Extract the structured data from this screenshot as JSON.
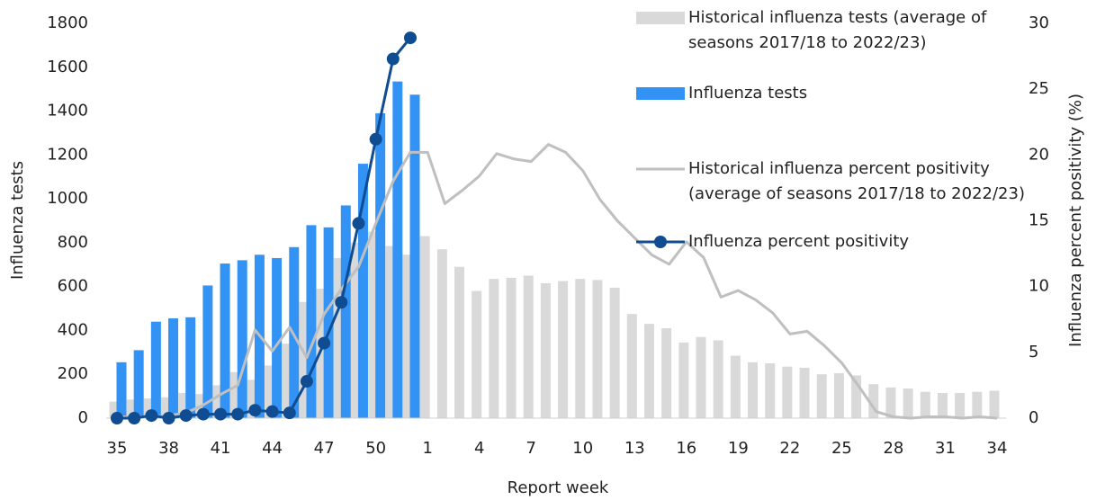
{
  "chart_data": {
    "type": "bar",
    "x_label": "Report week",
    "y_label": "Influenza tests",
    "y2_label": "Influenza percent positivity (%)",
    "categories": [
      "35",
      null,
      null,
      "38",
      null,
      null,
      "41",
      null,
      null,
      "44",
      null,
      null,
      "47",
      null,
      null,
      "50",
      null,
      null,
      "1",
      null,
      null,
      "4",
      null,
      null,
      "7",
      null,
      null,
      "10",
      null,
      null,
      "13",
      null,
      null,
      "16",
      null,
      null,
      "19",
      null,
      null,
      "22",
      null,
      null,
      "25",
      null,
      null,
      "28",
      null,
      null,
      "31",
      null,
      null,
      "34"
    ],
    "ylim": [
      0,
      1800
    ],
    "yticks": [
      0,
      200,
      400,
      600,
      800,
      1000,
      1200,
      1400,
      1600,
      1800
    ],
    "y2lim": [
      0,
      30
    ],
    "y2ticks": [
      0,
      5,
      10,
      15,
      20,
      25,
      30
    ],
    "series": [
      {
        "name": "Historical influenza tests (average of seasons 2017/18 to 2022/23)",
        "type": "bar",
        "color": "#d9d9d9",
        "values": [
          75,
          85,
          90,
          95,
          115,
          110,
          150,
          210,
          175,
          240,
          340,
          530,
          590,
          730,
          800,
          850,
          785,
          745,
          830,
          770,
          690,
          580,
          635,
          640,
          650,
          615,
          625,
          635,
          630,
          595,
          475,
          430,
          410,
          345,
          370,
          355,
          285,
          255,
          250,
          235,
          230,
          200,
          205,
          195,
          155,
          140,
          135,
          120,
          115,
          115,
          120,
          125
        ]
      },
      {
        "name": "Influenza tests",
        "type": "bar",
        "color": "#3293f5",
        "values": [
          255,
          310,
          440,
          455,
          460,
          605,
          705,
          720,
          745,
          730,
          780,
          880,
          870,
          970,
          1160,
          1390,
          1535,
          1475,
          null,
          null,
          null,
          null,
          null,
          null,
          null,
          null,
          null,
          null,
          null,
          null,
          null,
          null,
          null,
          null,
          null,
          null,
          null,
          null,
          null,
          null,
          null,
          null,
          null,
          null,
          null,
          null,
          null,
          null,
          null,
          null,
          null,
          null
        ]
      },
      {
        "name": "Historical influenza percent positivity (average of seasons 2017/18 to 2022/23)",
        "type": "line",
        "axis": "y2",
        "color": "#bfbfbf",
        "values": [
          0.1,
          0.1,
          0.1,
          0.2,
          0.4,
          1.0,
          1.8,
          2.5,
          6.7,
          5.1,
          6.9,
          4.6,
          7.9,
          9.8,
          11.5,
          14.8,
          18.0,
          20.2,
          20.2,
          16.3,
          17.3,
          18.4,
          20.1,
          19.7,
          19.5,
          20.8,
          20.2,
          18.8,
          16.6,
          15.0,
          13.7,
          12.4,
          11.7,
          13.4,
          12.2,
          9.2,
          9.7,
          9.0,
          8.0,
          6.4,
          6.6,
          5.5,
          4.2,
          2.4,
          0.5,
          0.1,
          0.0,
          0.1,
          0.1,
          0.0,
          0.1,
          0.0
        ]
      },
      {
        "name": "Influenza percent positivity",
        "type": "line",
        "axis": "y2",
        "color": "#0f4c92",
        "markers": true,
        "values": [
          0,
          0,
          0.2,
          0,
          0.2,
          0.3,
          0.3,
          0.3,
          0.6,
          0.5,
          0.4,
          2.8,
          5.7,
          8.8,
          14.8,
          21.2,
          27.3,
          28.9,
          null,
          null,
          null,
          null,
          null,
          null,
          null,
          null,
          null,
          null,
          null,
          null,
          null,
          null,
          null,
          null,
          null,
          null,
          null,
          null,
          null,
          null,
          null,
          null,
          null,
          null,
          null,
          null,
          null,
          null,
          null,
          null,
          null,
          null
        ]
      }
    ]
  }
}
